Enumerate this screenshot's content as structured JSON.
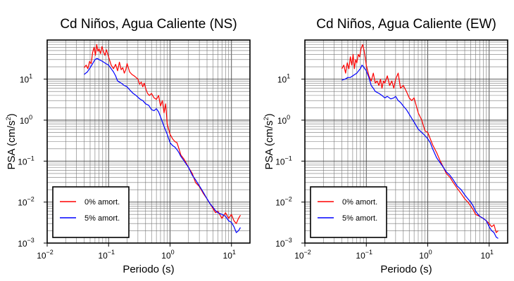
{
  "chart_data": [
    {
      "type": "line",
      "title": "Cd Niños, Agua Caliente (NS)",
      "xlabel": "Periodo (s)",
      "ylabel": "PSA (cm/s",
      "ylabel_sup": "2",
      "ylabel_end": ")",
      "xscale": "log",
      "yscale": "log",
      "xlim": [
        0.01,
        20
      ],
      "ylim": [
        0.001,
        90
      ],
      "grid": true,
      "legend_position": "bottom-left",
      "xticks": [
        {
          "base": "10",
          "exp": "−2"
        },
        {
          "base": "10",
          "exp": "−1"
        },
        {
          "base": "10",
          "exp": "0"
        },
        {
          "base": "10",
          "exp": "1"
        }
      ],
      "yticks": [
        {
          "base": "10",
          "exp": "−3"
        },
        {
          "base": "10",
          "exp": "−2"
        },
        {
          "base": "10",
          "exp": "−1"
        },
        {
          "base": "10",
          "exp": "0"
        },
        {
          "base": "10",
          "exp": "1"
        }
      ],
      "series": [
        {
          "name": "0% amort.",
          "color": "#ff0000",
          "x": [
            0.04,
            0.043,
            0.046,
            0.049,
            0.052,
            0.055,
            0.058,
            0.061,
            0.064,
            0.067,
            0.07,
            0.074,
            0.078,
            0.082,
            0.087,
            0.092,
            0.097,
            0.1,
            0.11,
            0.12,
            0.13,
            0.14,
            0.15,
            0.16,
            0.17,
            0.18,
            0.19,
            0.2,
            0.22,
            0.24,
            0.26,
            0.28,
            0.3,
            0.32,
            0.34,
            0.36,
            0.38,
            0.4,
            0.43,
            0.46,
            0.5,
            0.55,
            0.6,
            0.65,
            0.7,
            0.75,
            0.8,
            0.85,
            0.9,
            1.0,
            1.1,
            1.2,
            1.3,
            1.4,
            1.5,
            1.7,
            2.0,
            2.3,
            2.6,
            3.0,
            3.5,
            4.0,
            4.5,
            5.0,
            5.5,
            6.0,
            7.0,
            8.0,
            9.0,
            10.0,
            11.0,
            12.0,
            13.0,
            14.0
          ],
          "y": [
            19,
            22,
            18,
            27,
            24,
            45,
            60,
            38,
            70,
            48,
            55,
            42,
            62,
            48,
            38,
            52,
            40,
            35,
            22,
            18,
            23,
            16,
            26,
            17,
            19,
            14,
            17,
            24,
            15,
            13,
            12,
            11,
            10,
            7.5,
            8.5,
            6.5,
            8,
            6,
            4.5,
            4,
            4.5,
            3.5,
            3.2,
            4,
            2.2,
            3,
            1.5,
            2.5,
            0.8,
            0.45,
            0.35,
            0.3,
            0.28,
            0.2,
            0.14,
            0.11,
            0.07,
            0.05,
            0.03,
            0.024,
            0.016,
            0.012,
            0.009,
            0.007,
            0.0055,
            0.006,
            0.004,
            0.0055,
            0.004,
            0.005,
            0.0035,
            0.003,
            0.004,
            0.0048
          ]
        },
        {
          "name": "5% amort.",
          "color": "#0000ff",
          "x": [
            0.04,
            0.045,
            0.05,
            0.055,
            0.06,
            0.065,
            0.07,
            0.08,
            0.09,
            0.1,
            0.11,
            0.12,
            0.13,
            0.14,
            0.16,
            0.18,
            0.2,
            0.22,
            0.25,
            0.28,
            0.3,
            0.33,
            0.36,
            0.4,
            0.45,
            0.5,
            0.55,
            0.6,
            0.65,
            0.7,
            0.8,
            0.9,
            1.0,
            1.1,
            1.2,
            1.3,
            1.4,
            1.5,
            1.7,
            2.0,
            2.3,
            2.6,
            3.0,
            3.5,
            4.0,
            4.5,
            5.0,
            5.5,
            6.0,
            7.0,
            8.0,
            9.0,
            10.0,
            11.0,
            12.0,
            13.0,
            14.0
          ],
          "y": [
            13,
            15,
            19,
            24,
            30,
            32,
            30,
            27,
            24,
            22,
            18,
            15,
            12,
            9,
            8,
            7,
            6.5,
            5.5,
            4.5,
            4,
            3.6,
            3.2,
            3,
            2.5,
            2.3,
            1.8,
            1.7,
            1.9,
            1.6,
            1.2,
            0.7,
            0.45,
            0.28,
            0.24,
            0.22,
            0.19,
            0.16,
            0.13,
            0.1,
            0.07,
            0.045,
            0.035,
            0.025,
            0.017,
            0.012,
            0.009,
            0.0075,
            0.0062,
            0.0055,
            0.005,
            0.0045,
            0.0035,
            0.0032,
            0.0025,
            0.0018,
            0.002,
            0.0024
          ]
        }
      ]
    },
    {
      "type": "line",
      "title": "Cd Niños, Agua Caliente (EW)",
      "xlabel": "Periodo (s)",
      "ylabel": "PSA (cm/s",
      "ylabel_sup": "2",
      "ylabel_end": ")",
      "xscale": "log",
      "yscale": "log",
      "xlim": [
        0.01,
        20
      ],
      "ylim": [
        0.001,
        90
      ],
      "grid": true,
      "legend_position": "bottom-left",
      "xticks": [
        {
          "base": "10",
          "exp": "−2"
        },
        {
          "base": "10",
          "exp": "−1"
        },
        {
          "base": "10",
          "exp": "0"
        },
        {
          "base": "10",
          "exp": "1"
        }
      ],
      "yticks": [
        {
          "base": "10",
          "exp": "−3"
        },
        {
          "base": "10",
          "exp": "−2"
        },
        {
          "base": "10",
          "exp": "−1"
        },
        {
          "base": "10",
          "exp": "0"
        },
        {
          "base": "10",
          "exp": "1"
        }
      ],
      "series": [
        {
          "name": "0% amort.",
          "color": "#ff0000",
          "x": [
            0.04,
            0.043,
            0.046,
            0.049,
            0.052,
            0.055,
            0.058,
            0.061,
            0.064,
            0.067,
            0.07,
            0.074,
            0.078,
            0.082,
            0.087,
            0.092,
            0.097,
            0.1,
            0.11,
            0.12,
            0.13,
            0.14,
            0.15,
            0.16,
            0.17,
            0.18,
            0.19,
            0.2,
            0.22,
            0.24,
            0.26,
            0.28,
            0.3,
            0.33,
            0.36,
            0.4,
            0.45,
            0.5,
            0.55,
            0.6,
            0.7,
            0.8,
            0.9,
            1.0,
            1.1,
            1.2,
            1.4,
            1.6,
            1.8,
            2.0,
            2.3,
            2.6,
            3.0,
            3.5,
            4.0,
            4.5,
            5.0,
            5.5,
            6.0,
            7.0,
            8.0,
            9.0,
            10.0,
            11.0,
            12.0,
            13.0,
            14.0
          ],
          "y": [
            18,
            22,
            14,
            25,
            18,
            35,
            22,
            40,
            18,
            30,
            25,
            40,
            35,
            55,
            70,
            50,
            30,
            22,
            12,
            9,
            14,
            8,
            9,
            7,
            10,
            6,
            9,
            8,
            12,
            7,
            9,
            6,
            10,
            14,
            6,
            7,
            5,
            3.5,
            3,
            3.5,
            1.5,
            1,
            0.55,
            0.5,
            0.35,
            0.25,
            0.16,
            0.1,
            0.07,
            0.05,
            0.04,
            0.03,
            0.022,
            0.016,
            0.012,
            0.01,
            0.008,
            0.0065,
            0.005,
            0.0045,
            0.004,
            0.0035,
            0.003,
            0.0025,
            0.0028,
            0.0018,
            0.002
          ]
        },
        {
          "name": "5% amort.",
          "color": "#0000ff",
          "x": [
            0.04,
            0.045,
            0.05,
            0.055,
            0.06,
            0.065,
            0.07,
            0.075,
            0.08,
            0.085,
            0.09,
            0.1,
            0.11,
            0.12,
            0.13,
            0.14,
            0.16,
            0.18,
            0.2,
            0.22,
            0.25,
            0.28,
            0.3,
            0.33,
            0.36,
            0.4,
            0.45,
            0.5,
            0.55,
            0.6,
            0.7,
            0.8,
            0.9,
            1.0,
            1.1,
            1.2,
            1.4,
            1.6,
            1.8,
            2.0,
            2.3,
            2.6,
            3.0,
            3.5,
            4.0,
            4.5,
            5.0,
            5.5,
            6.0,
            7.0,
            8.0,
            9.0,
            10.0,
            11.0,
            12.0,
            13.0,
            14.0
          ],
          "y": [
            9.5,
            10,
            11,
            11,
            12,
            13,
            14,
            16,
            18,
            22,
            20,
            16,
            11,
            7,
            6,
            5,
            4.5,
            4,
            3.5,
            3.8,
            3.3,
            3.5,
            3.8,
            3,
            2.7,
            2.2,
            1.8,
            1.4,
            1.1,
            0.9,
            0.6,
            0.5,
            0.42,
            0.35,
            0.28,
            0.2,
            0.12,
            0.09,
            0.07,
            0.055,
            0.045,
            0.035,
            0.025,
            0.02,
            0.015,
            0.012,
            0.01,
            0.008,
            0.006,
            0.0045,
            0.004,
            0.0035,
            0.0025,
            0.002,
            0.0018,
            0.0014,
            0.0013
          ]
        }
      ]
    }
  ]
}
